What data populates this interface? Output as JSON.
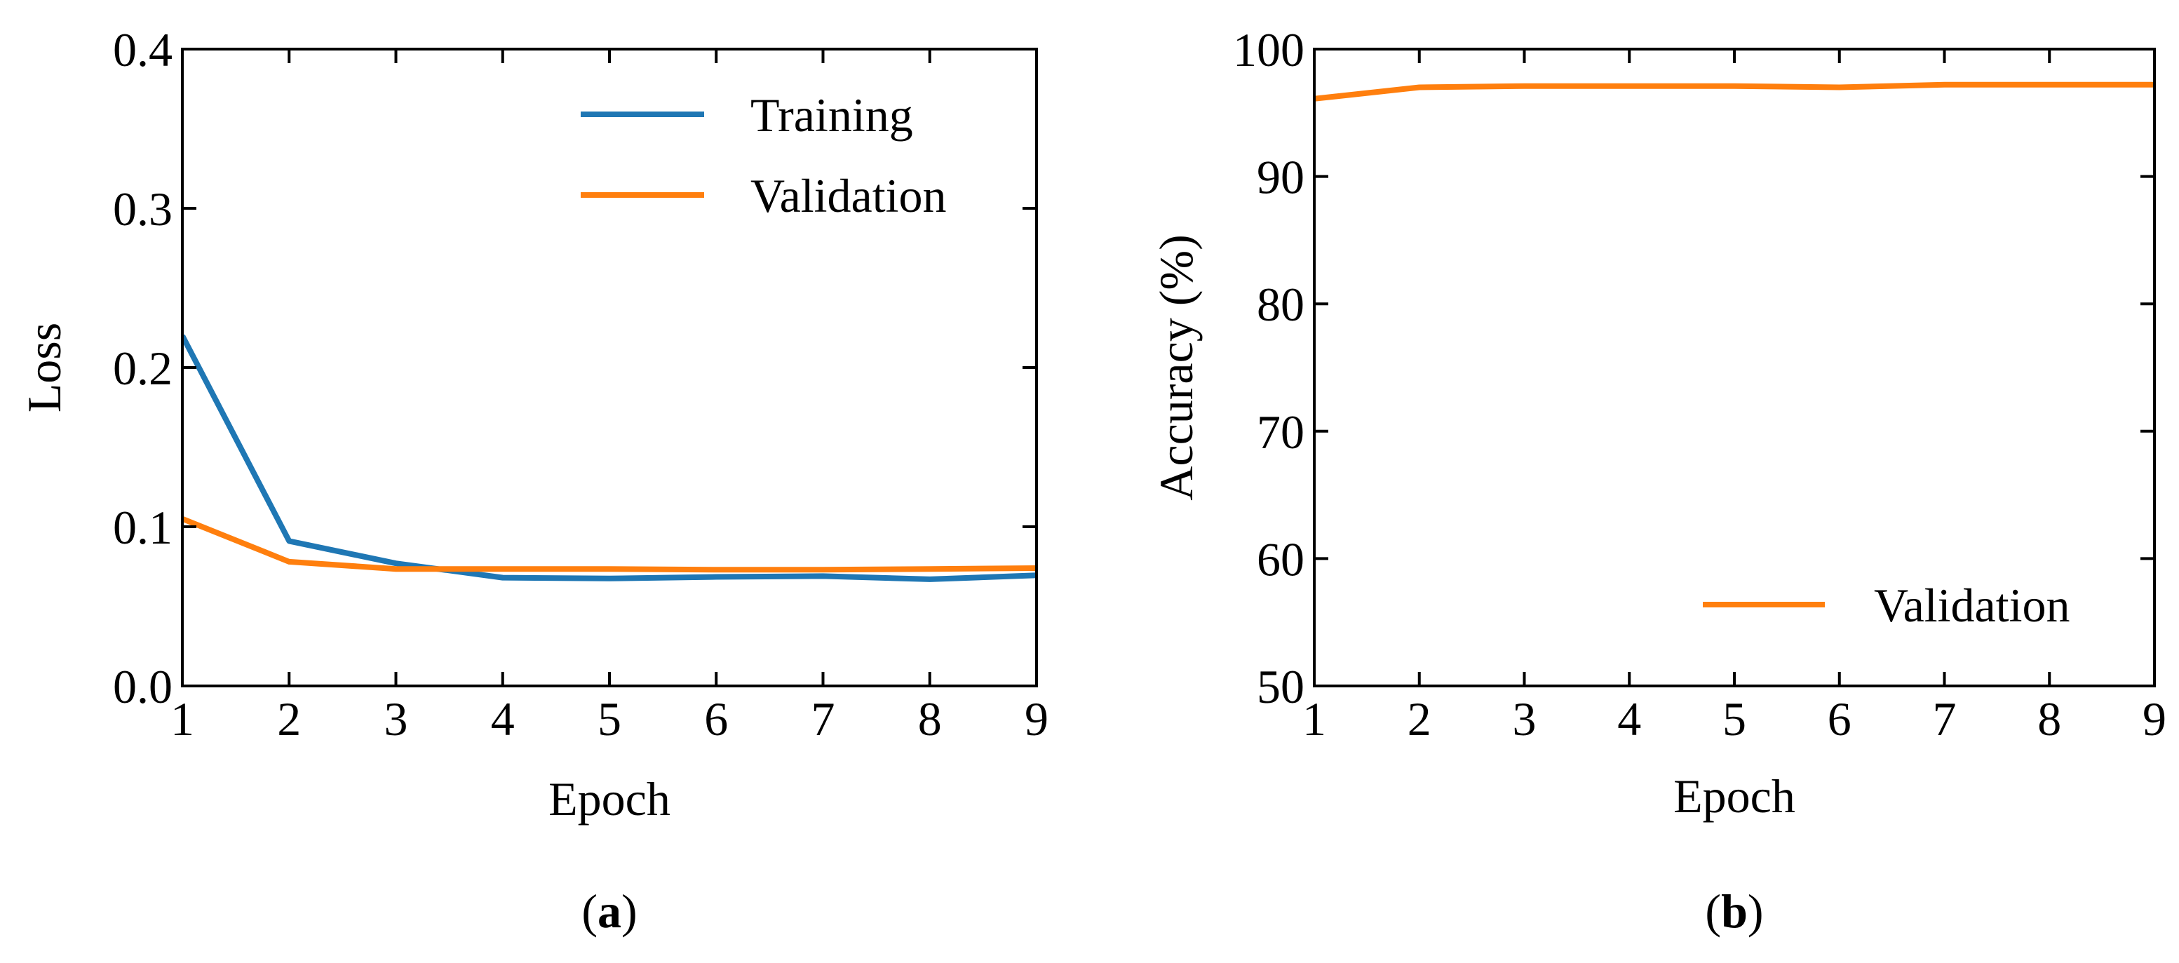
{
  "chart_data": [
    {
      "type": "line",
      "panel_label": "a",
      "xlabel": "Epoch",
      "ylabel": "Loss",
      "xlim": [
        1,
        9
      ],
      "ylim": [
        0.0,
        0.4
      ],
      "x_ticks": [
        "1",
        "2",
        "3",
        "4",
        "5",
        "6",
        "7",
        "8",
        "9"
      ],
      "y_ticks": [
        "0.0",
        "0.1",
        "0.2",
        "0.3",
        "0.4"
      ],
      "legend_position": "top-right",
      "x": [
        1,
        2,
        3,
        4,
        5,
        6,
        7,
        8,
        9
      ],
      "series": [
        {
          "name": "Training",
          "color": "#1f77b4",
          "values": [
            0.22,
            0.091,
            0.077,
            0.068,
            0.0675,
            0.0685,
            0.069,
            0.067,
            0.0695
          ]
        },
        {
          "name": "Validation",
          "color": "#ff7f0e",
          "values": [
            0.105,
            0.078,
            0.0735,
            0.0735,
            0.0735,
            0.073,
            0.073,
            0.0735,
            0.074
          ]
        }
      ]
    },
    {
      "type": "line",
      "panel_label": "b",
      "xlabel": "Epoch",
      "ylabel": "Accuracy (%)",
      "xlim": [
        1,
        9
      ],
      "ylim": [
        50,
        100
      ],
      "x_ticks": [
        "1",
        "2",
        "3",
        "4",
        "5",
        "6",
        "7",
        "8",
        "9"
      ],
      "y_ticks": [
        "50",
        "60",
        "70",
        "80",
        "90",
        "100"
      ],
      "legend_position": "bottom-right",
      "x": [
        1,
        2,
        3,
        4,
        5,
        6,
        7,
        8,
        9
      ],
      "series": [
        {
          "name": "Validation",
          "color": "#ff7f0e",
          "values": [
            96.1,
            97.0,
            97.1,
            97.1,
            97.1,
            97.0,
            97.2,
            97.2,
            97.2
          ]
        }
      ]
    }
  ]
}
